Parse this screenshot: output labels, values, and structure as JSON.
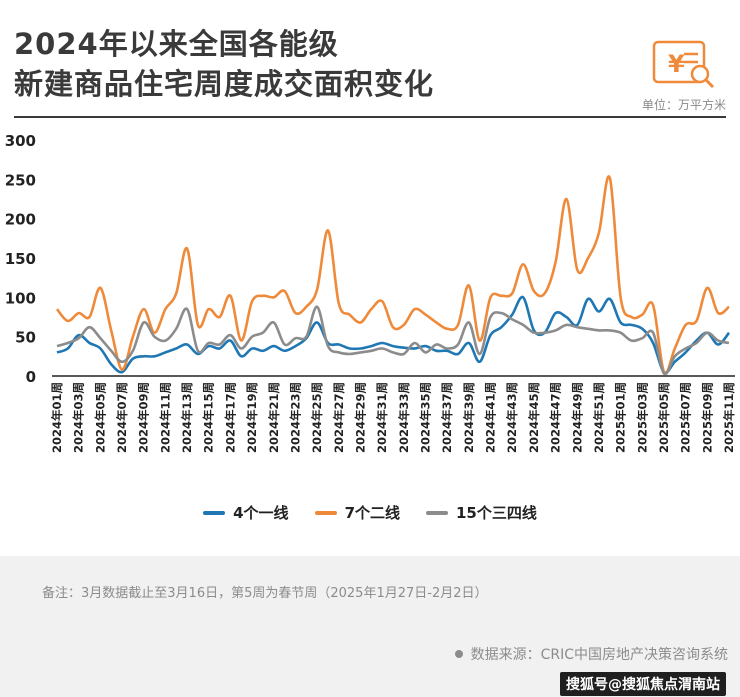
{
  "header": {
    "title_line1": "2024年以来全国各能级",
    "title_line2": "新建商品住宅周度成交面积变化",
    "unit": "单位：万平方米",
    "logo_icon": "yen-document-search-icon"
  },
  "legend": [
    {
      "name": "4个一线",
      "color": "#1f78b4"
    },
    {
      "name": "7个二线",
      "color": "#ee8a3a"
    },
    {
      "name": "15个三四线",
      "color": "#8c8c8c"
    }
  ],
  "footer": {
    "note": "备注：3月数据截止至3月16日，第5周为春节周（2025年1月27日-2月2日）",
    "source": "数据来源：CRIC中国房地产决策咨询系统",
    "watermark": "搜狐号@搜狐焦点渭南站"
  },
  "chart_data": {
    "type": "line",
    "ylim": [
      0,
      300
    ],
    "yticks": [
      0,
      50,
      100,
      150,
      200,
      250,
      300
    ],
    "x": [
      "2024年01周",
      "2024年02周",
      "2024年03周",
      "2024年04周",
      "2024年05周",
      "2024年06周",
      "2024年07周",
      "2024年08周",
      "2024年09周",
      "2024年10周",
      "2024年11周",
      "2024年12周",
      "2024年13周",
      "2024年14周",
      "2024年15周",
      "2024年16周",
      "2024年17周",
      "2024年18周",
      "2024年19周",
      "2024年20周",
      "2024年21周",
      "2024年22周",
      "2024年23周",
      "2024年24周",
      "2024年25周",
      "2024年26周",
      "2024年27周",
      "2024年28周",
      "2024年29周",
      "2024年30周",
      "2024年31周",
      "2024年32周",
      "2024年33周",
      "2024年34周",
      "2024年35周",
      "2024年36周",
      "2024年37周",
      "2024年38周",
      "2024年39周",
      "2024年40周",
      "2024年41周",
      "2024年42周",
      "2024年43周",
      "2024年44周",
      "2024年45周",
      "2024年46周",
      "2024年47周",
      "2024年48周",
      "2024年49周",
      "2024年50周",
      "2024年51周",
      "2024年52周",
      "2025年01周",
      "2025年02周",
      "2025年03周",
      "2025年04周",
      "2025年05周",
      "2025年06周",
      "2025年07周",
      "2025年08周",
      "2025年09周",
      "2025年10周",
      "2025年11周"
    ],
    "xtick_labels": [
      "2024年01周",
      "2024年03周",
      "2024年05周",
      "2024年07周",
      "2024年09周",
      "2024年11周",
      "2024年13周",
      "2024年15周",
      "2024年17周",
      "2024年19周",
      "2024年21周",
      "2024年23周",
      "2024年25周",
      "2024年27周",
      "2024年29周",
      "2024年31周",
      "2024年33周",
      "2024年35周",
      "2024年37周",
      "2024年39周",
      "2024年41周",
      "2024年43周",
      "2024年45周",
      "2024年47周",
      "2024年49周",
      "2024年51周",
      "2025年01周",
      "2025年03周",
      "2025年05周",
      "2025年07周",
      "2025年09周",
      "2025年11周"
    ],
    "series": [
      {
        "name": "4个一线",
        "color": "#1f78b4",
        "values": [
          30,
          35,
          52,
          42,
          35,
          15,
          5,
          22,
          25,
          25,
          30,
          35,
          40,
          28,
          38,
          35,
          45,
          25,
          35,
          32,
          38,
          32,
          38,
          48,
          68,
          42,
          40,
          35,
          35,
          38,
          42,
          38,
          36,
          35,
          38,
          32,
          32,
          28,
          42,
          18,
          52,
          62,
          78,
          100,
          58,
          55,
          80,
          75,
          65,
          98,
          82,
          98,
          68,
          65,
          60,
          42,
          5,
          18,
          30,
          45,
          55,
          40,
          55
        ]
      },
      {
        "name": "7个二线",
        "color": "#ee8a3a",
        "values": [
          85,
          70,
          80,
          75,
          112,
          58,
          8,
          50,
          85,
          55,
          85,
          105,
          162,
          65,
          85,
          75,
          102,
          45,
          95,
          102,
          100,
          108,
          80,
          88,
          110,
          185,
          92,
          78,
          68,
          85,
          95,
          62,
          65,
          85,
          78,
          68,
          60,
          65,
          115,
          45,
          100,
          102,
          105,
          142,
          108,
          105,
          145,
          225,
          135,
          150,
          182,
          252,
          100,
          75,
          78,
          90,
          5,
          35,
          65,
          70,
          112,
          80,
          88
        ]
      },
      {
        "name": "15个三四线",
        "color": "#8c8c8c",
        "values": [
          38,
          42,
          48,
          62,
          48,
          32,
          18,
          32,
          68,
          50,
          45,
          60,
          85,
          32,
          42,
          40,
          52,
          35,
          50,
          55,
          68,
          40,
          48,
          50,
          88,
          38,
          30,
          28,
          30,
          32,
          35,
          30,
          28,
          42,
          30,
          40,
          35,
          40,
          68,
          28,
          75,
          80,
          72,
          65,
          55,
          55,
          58,
          65,
          62,
          60,
          58,
          58,
          55,
          45,
          48,
          55,
          3,
          25,
          35,
          42,
          55,
          45,
          42
        ]
      }
    ]
  }
}
